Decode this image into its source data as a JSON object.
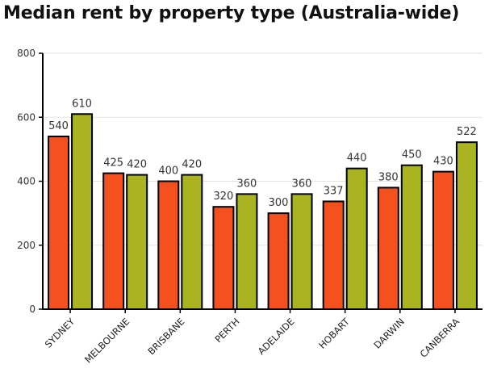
{
  "chart_data": {
    "type": "bar",
    "title": "Median rent by property type (Australia-wide)",
    "xlabel": "",
    "ylabel": "",
    "ylim": [
      0,
      800
    ],
    "yticks": [
      0,
      200,
      400,
      600,
      800
    ],
    "grid": true,
    "legend": "none",
    "categories": [
      "SYDNEY",
      "MELBOURNE",
      "BRISBANE",
      "PERTH",
      "ADELAIDE",
      "HOBART",
      "DARWIN",
      "CANBERRA"
    ],
    "series": [
      {
        "values": [
          540,
          425,
          400,
          320,
          300,
          337,
          380,
          430
        ],
        "color": "#f4511e"
      },
      {
        "values": [
          610,
          420,
          420,
          360,
          360,
          440,
          450,
          522
        ],
        "color": "#aab320"
      }
    ]
  }
}
